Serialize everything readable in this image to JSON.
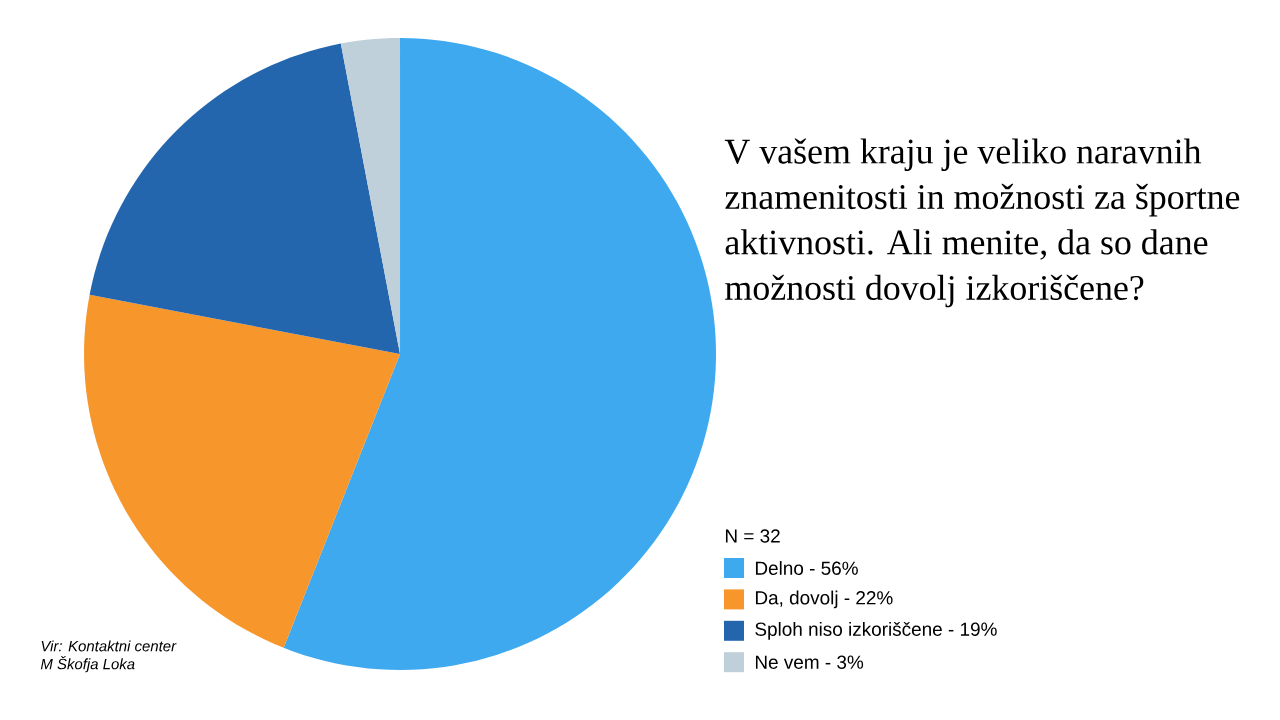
{
  "chart_data": {
    "type": "pie",
    "title": "V vašem kraju je veliko naravnih znamenitosti in možnosti za športne aktivnosti. Ali menite, da so dane možnosti dovolj izkoriščene?",
    "subtitle": "N = 32",
    "categories": [
      "Delno - 56%",
      "Da, dovolj - 22%",
      "Sploh niso izkoriščene - 19%",
      "Ne vem - 3%"
    ],
    "values": [
      56,
      22,
      19,
      3
    ],
    "colors": [
      "#3fa9f0",
      "#f7962a",
      "#2466ae",
      "#c0d0da"
    ],
    "legend": "right",
    "annotations": [
      "Vir: Kontaktni center M Škofja Loka"
    ]
  }
}
